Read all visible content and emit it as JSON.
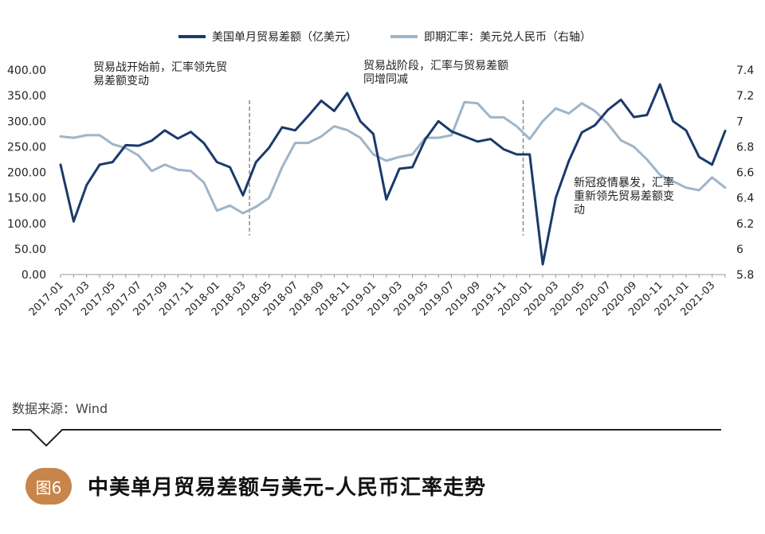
{
  "colors": {
    "trade": "#1b3a6b",
    "rate": "#9fb5c8",
    "axis": "#999999",
    "badge": "#c8854a"
  },
  "legend": [
    {
      "label": "美国单月贸易差额（亿美元）",
      "color": "#1b3a6b"
    },
    {
      "label": "即期汇率：美元兑人民币（右轴）",
      "color": "#9fb5c8"
    }
  ],
  "annotations": {
    "a1": [
      "贸易战开始前，汇率领先贸",
      "易差额变动"
    ],
    "a2": [
      "贸易战阶段，汇率与贸易差额",
      "同增同减"
    ],
    "a3": [
      "新冠疫情暴发，汇率",
      "重新领先贸易差额变",
      "动"
    ]
  },
  "source": "数据来源：Wind",
  "figure": {
    "badge": "图6",
    "title": "中美单月贸易差额与美元–人民币汇率走势"
  },
  "chart_data": {
    "type": "line",
    "x": [
      "2017-01",
      "2017-02",
      "2017-03",
      "2017-04",
      "2017-05",
      "2017-06",
      "2017-07",
      "2017-08",
      "2017-09",
      "2017-10",
      "2017-11",
      "2017-12",
      "2018-01",
      "2018-02",
      "2018-03",
      "2018-04",
      "2018-05",
      "2018-06",
      "2018-07",
      "2018-08",
      "2018-09",
      "2018-10",
      "2018-11",
      "2018-12",
      "2019-01",
      "2019-02",
      "2019-03",
      "2019-04",
      "2019-05",
      "2019-06",
      "2019-07",
      "2019-08",
      "2019-09",
      "2019-10",
      "2019-11",
      "2019-12",
      "2020-01",
      "2020-02",
      "2020-03",
      "2020-04",
      "2020-05",
      "2020-06",
      "2020-07",
      "2020-08",
      "2020-09",
      "2020-10",
      "2020-11",
      "2020-12",
      "2021-01",
      "2021-02",
      "2021-03",
      "2021-04"
    ],
    "x_tick_labels": [
      "2017-01",
      "2017-03",
      "2017-05",
      "2017-07",
      "2017-09",
      "2017-11",
      "2018-01",
      "2018-03",
      "2018-05",
      "2018-07",
      "2018-09",
      "2018-11",
      "2019-01",
      "2019-03",
      "2019-05",
      "2019-07",
      "2019-09",
      "2019-11",
      "2020-01",
      "2020-03",
      "2020-05",
      "2020-07",
      "2020-09",
      "2020-11",
      "2021-01",
      "2021-03"
    ],
    "series": [
      {
        "name": "美国单月贸易差额（亿美元）",
        "axis": "left",
        "values": [
          215,
          104,
          175,
          215,
          220,
          253,
          252,
          262,
          282,
          266,
          279,
          257,
          220,
          210,
          155,
          220,
          248,
          288,
          282,
          310,
          340,
          320,
          355,
          300,
          275,
          147,
          207,
          210,
          265,
          300,
          280,
          270,
          260,
          265,
          245,
          235,
          235,
          20,
          150,
          222,
          278,
          292,
          322,
          342,
          308,
          312,
          372,
          300,
          282,
          230,
          215,
          281
        ]
      },
      {
        "name": "即期汇率：美元兑人民币（右轴）",
        "axis": "right",
        "values": [
          6.88,
          6.87,
          6.89,
          6.89,
          6.82,
          6.79,
          6.73,
          6.61,
          6.66,
          6.62,
          6.61,
          6.52,
          6.3,
          6.34,
          6.28,
          6.33,
          6.4,
          6.64,
          6.83,
          6.83,
          6.88,
          6.96,
          6.93,
          6.87,
          6.74,
          6.69,
          6.72,
          6.74,
          6.87,
          6.87,
          6.89,
          7.15,
          7.14,
          7.03,
          7.03,
          6.96,
          6.86,
          7.0,
          7.1,
          7.06,
          7.14,
          7.08,
          6.98,
          6.85,
          6.8,
          6.7,
          6.58,
          6.53,
          6.48,
          6.46,
          6.56,
          6.48
        ]
      }
    ],
    "yleft": {
      "min": 0,
      "max": 400,
      "ticks": [
        "0.00",
        "50.00",
        "100.00",
        "150.00",
        "200.00",
        "250.00",
        "300.00",
        "350.00",
        "400.00"
      ]
    },
    "yright": {
      "min": 5.8,
      "max": 7.4,
      "ticks": [
        "5.8",
        "6",
        "6.2",
        "6.4",
        "6.6",
        "6.8",
        "7",
        "7.2",
        "7.4"
      ]
    },
    "dividers_at": [
      "2018-04",
      "2020-01"
    ],
    "grid": false,
    "legend_position": "top"
  }
}
